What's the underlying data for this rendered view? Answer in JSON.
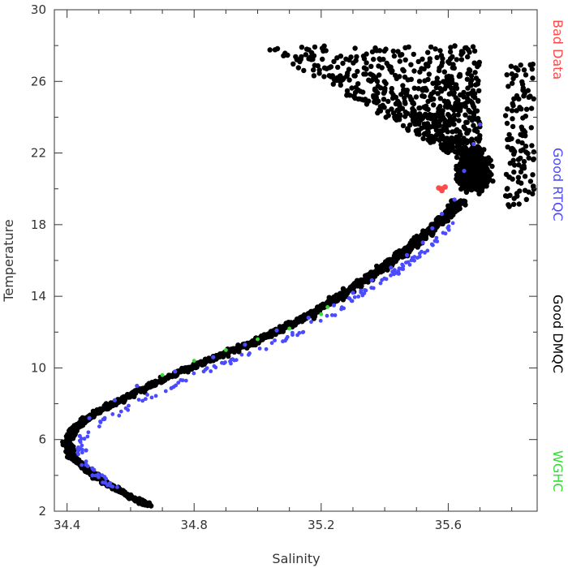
{
  "chart_data": {
    "type": "scatter",
    "title": "",
    "xlabel": "Salinity",
    "ylabel": "Temperature",
    "xlim": [
      34.36,
      35.88
    ],
    "ylim": [
      2,
      30
    ],
    "xticks": [
      34.4,
      34.8,
      35.2,
      35.6
    ],
    "xtick_labels": [
      "34.4",
      "34.8",
      "35.2",
      "35.6"
    ],
    "yticks": [
      2,
      6,
      10,
      14,
      18,
      22,
      26,
      30
    ],
    "ytick_labels": [
      "2",
      "6",
      "10",
      "14",
      "18",
      "22",
      "26",
      "30"
    ],
    "grid": false,
    "legend_position": "right-outside-vertical",
    "series": [
      {
        "name": "Bad Data",
        "color": "#ff4a4a",
        "points": [
          [
            35.57,
            20.05
          ],
          [
            35.58,
            20.0
          ],
          [
            35.59,
            20.1
          ],
          [
            35.58,
            19.9
          ]
        ]
      },
      {
        "name": "Good RTQC",
        "color": "#4a4aff",
        "points": [
          [
            34.46,
            4.6
          ],
          [
            34.48,
            4.0
          ],
          [
            34.52,
            3.6
          ],
          [
            34.46,
            5.4
          ],
          [
            34.44,
            6.2
          ],
          [
            34.47,
            7.2
          ],
          [
            34.55,
            8.2
          ],
          [
            34.62,
            9.0
          ],
          [
            34.74,
            9.8
          ],
          [
            34.86,
            10.6
          ],
          [
            34.96,
            11.3
          ],
          [
            35.06,
            12.1
          ],
          [
            35.16,
            12.8
          ],
          [
            35.24,
            13.5
          ],
          [
            35.3,
            14.2
          ],
          [
            35.36,
            14.9
          ],
          [
            35.42,
            15.6
          ],
          [
            35.47,
            16.3
          ],
          [
            35.52,
            17.0
          ],
          [
            35.55,
            17.8
          ],
          [
            35.58,
            18.6
          ],
          [
            35.62,
            19.4
          ],
          [
            35.65,
            21.0
          ],
          [
            35.68,
            22.5
          ],
          [
            35.7,
            23.6
          ]
        ]
      },
      {
        "name": "Good DMQC",
        "color": "#000000",
        "points": []
      },
      {
        "name": "WGHC",
        "color": "#33dd33",
        "points": [
          [
            34.9,
            11.0
          ],
          [
            35.0,
            11.6
          ],
          [
            35.1,
            12.2
          ],
          [
            35.2,
            13.0
          ],
          [
            35.22,
            13.4
          ],
          [
            34.8,
            10.4
          ],
          [
            34.7,
            9.6
          ]
        ]
      }
    ]
  }
}
